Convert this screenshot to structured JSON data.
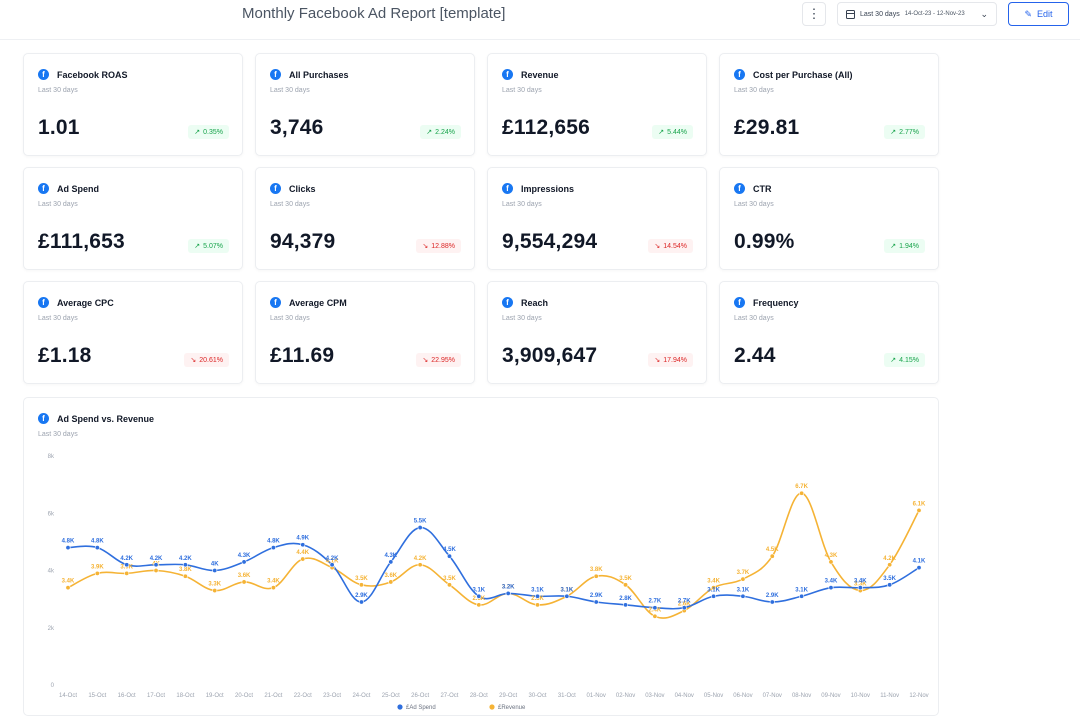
{
  "header": {
    "title": "Monthly Facebook Ad Report [template]",
    "kebab_icon": "more-vertical-icon",
    "date_label": "Last 30 days",
    "date_range": "14-Oct-23 - 12-Nov-23",
    "edit_label": "Edit"
  },
  "colors": {
    "facebook": "#1877f2",
    "ad_spend": "#2f6fde",
    "revenue": "#f5b335",
    "positive": "#16a34a",
    "negative": "#dc2626"
  },
  "cards": [
    {
      "title": "Facebook ROAS",
      "sub": "Last 30 days",
      "value": "1.01",
      "change": "0.35%",
      "trend": "up"
    },
    {
      "title": "All Purchases",
      "sub": "Last 30 days",
      "value": "3,746",
      "change": "2.24%",
      "trend": "up"
    },
    {
      "title": "Revenue",
      "sub": "Last 30 days",
      "value": "£112,656",
      "change": "5.44%",
      "trend": "up"
    },
    {
      "title": "Cost per Purchase (All)",
      "sub": "Last 30 days",
      "value": "£29.81",
      "change": "2.77%",
      "trend": "up"
    },
    {
      "title": "Ad Spend",
      "sub": "Last 30 days",
      "value": "£111,653",
      "change": "5.07%",
      "trend": "up"
    },
    {
      "title": "Clicks",
      "sub": "Last 30 days",
      "value": "94,379",
      "change": "12.88%",
      "trend": "down"
    },
    {
      "title": "Impressions",
      "sub": "Last 30 days",
      "value": "9,554,294",
      "change": "14.54%",
      "trend": "down"
    },
    {
      "title": "CTR",
      "sub": "Last 30 days",
      "value": "0.99%",
      "change": "1.94%",
      "trend": "up"
    },
    {
      "title": "Average CPC",
      "sub": "Last 30 days",
      "value": "£1.18",
      "change": "20.61%",
      "trend": "down"
    },
    {
      "title": "Average CPM",
      "sub": "Last 30 days",
      "value": "£11.69",
      "change": "22.95%",
      "trend": "down"
    },
    {
      "title": "Reach",
      "sub": "Last 30 days",
      "value": "3,909,647",
      "change": "17.94%",
      "trend": "down"
    },
    {
      "title": "Frequency",
      "sub": "Last 30 days",
      "value": "2.44",
      "change": "4.15%",
      "trend": "up"
    }
  ],
  "chart_card": {
    "title": "Ad Spend vs. Revenue",
    "sub": "Last 30 days"
  },
  "chart_data": {
    "type": "line",
    "title": "Ad Spend vs. Revenue",
    "subtitle": "Last 30 days",
    "categories": [
      "14-Oct",
      "15-Oct",
      "16-Oct",
      "17-Oct",
      "18-Oct",
      "19-Oct",
      "20-Oct",
      "21-Oct",
      "22-Oct",
      "23-Oct",
      "24-Oct",
      "25-Oct",
      "26-Oct",
      "27-Oct",
      "28-Oct",
      "29-Oct",
      "30-Oct",
      "31-Oct",
      "01-Nov",
      "02-Nov",
      "03-Nov",
      "04-Nov",
      "05-Nov",
      "06-Nov",
      "07-Nov",
      "08-Nov",
      "09-Nov",
      "10-Nov",
      "11-Nov",
      "12-Nov"
    ],
    "ylim": [
      0,
      8000
    ],
    "yticks": [
      0,
      2000,
      4000,
      6000,
      8000
    ],
    "ytick_labels": [
      "0",
      "2k",
      "4k",
      "6k",
      "8k"
    ],
    "grid": false,
    "legend_position": "bottom",
    "series": [
      {
        "name": "£Ad Spend",
        "color": "#2f6fde",
        "values": [
          4800,
          4800,
          4200,
          4200,
          4200,
          4000,
          4300,
          4800,
          4900,
          4200,
          2900,
          4300,
          5500,
          4500,
          3100,
          3200,
          3100,
          3100,
          2900,
          2800,
          2700,
          2700,
          3100,
          3100,
          2900,
          3100,
          3400,
          3400,
          3500,
          4100
        ],
        "labels": [
          "4.8K",
          "4.8K",
          "4.2K",
          "4.2K",
          "4.2K",
          "4K",
          "4.3K",
          "4.8K",
          "4.9K",
          "4.2K",
          "2.9K",
          "4.3K",
          "5.5K",
          "4.5K",
          "3.1K",
          "3.2K",
          "3.1K",
          "3.1K",
          "2.9K",
          "2.8K",
          "2.7K",
          "2.7K",
          "3.1K",
          "3.1K",
          "2.9K",
          "3.1K",
          "3.4K",
          "3.4K",
          "3.5K",
          "4.1K"
        ]
      },
      {
        "name": "£Revenue",
        "color": "#f5b335",
        "values": [
          3400,
          3900,
          3900,
          4000,
          3800,
          3300,
          3600,
          3400,
          4400,
          4100,
          3500,
          3600,
          4200,
          3500,
          2800,
          3200,
          2800,
          3100,
          3800,
          3500,
          2400,
          2600,
          3400,
          3700,
          4500,
          6700,
          4300,
          3300,
          4200,
          6100
        ],
        "labels": [
          "3.4K",
          "3.9K",
          "3.9K",
          "4K",
          "3.8K",
          "3.3K",
          "3.6K",
          "3.4K",
          "4.4K",
          "4.1K",
          "3.5K",
          "3.6K",
          "4.2K",
          "3.5K",
          "2.8K",
          "3.2K",
          "2.8K",
          "3.1K",
          "3.8K",
          "3.5K",
          "2.4K",
          "2.6K",
          "3.4K",
          "3.7K",
          "4.5K",
          "6.7K",
          "4.3K",
          "3.3K",
          "4.2K",
          "6.1K"
        ]
      }
    ]
  }
}
